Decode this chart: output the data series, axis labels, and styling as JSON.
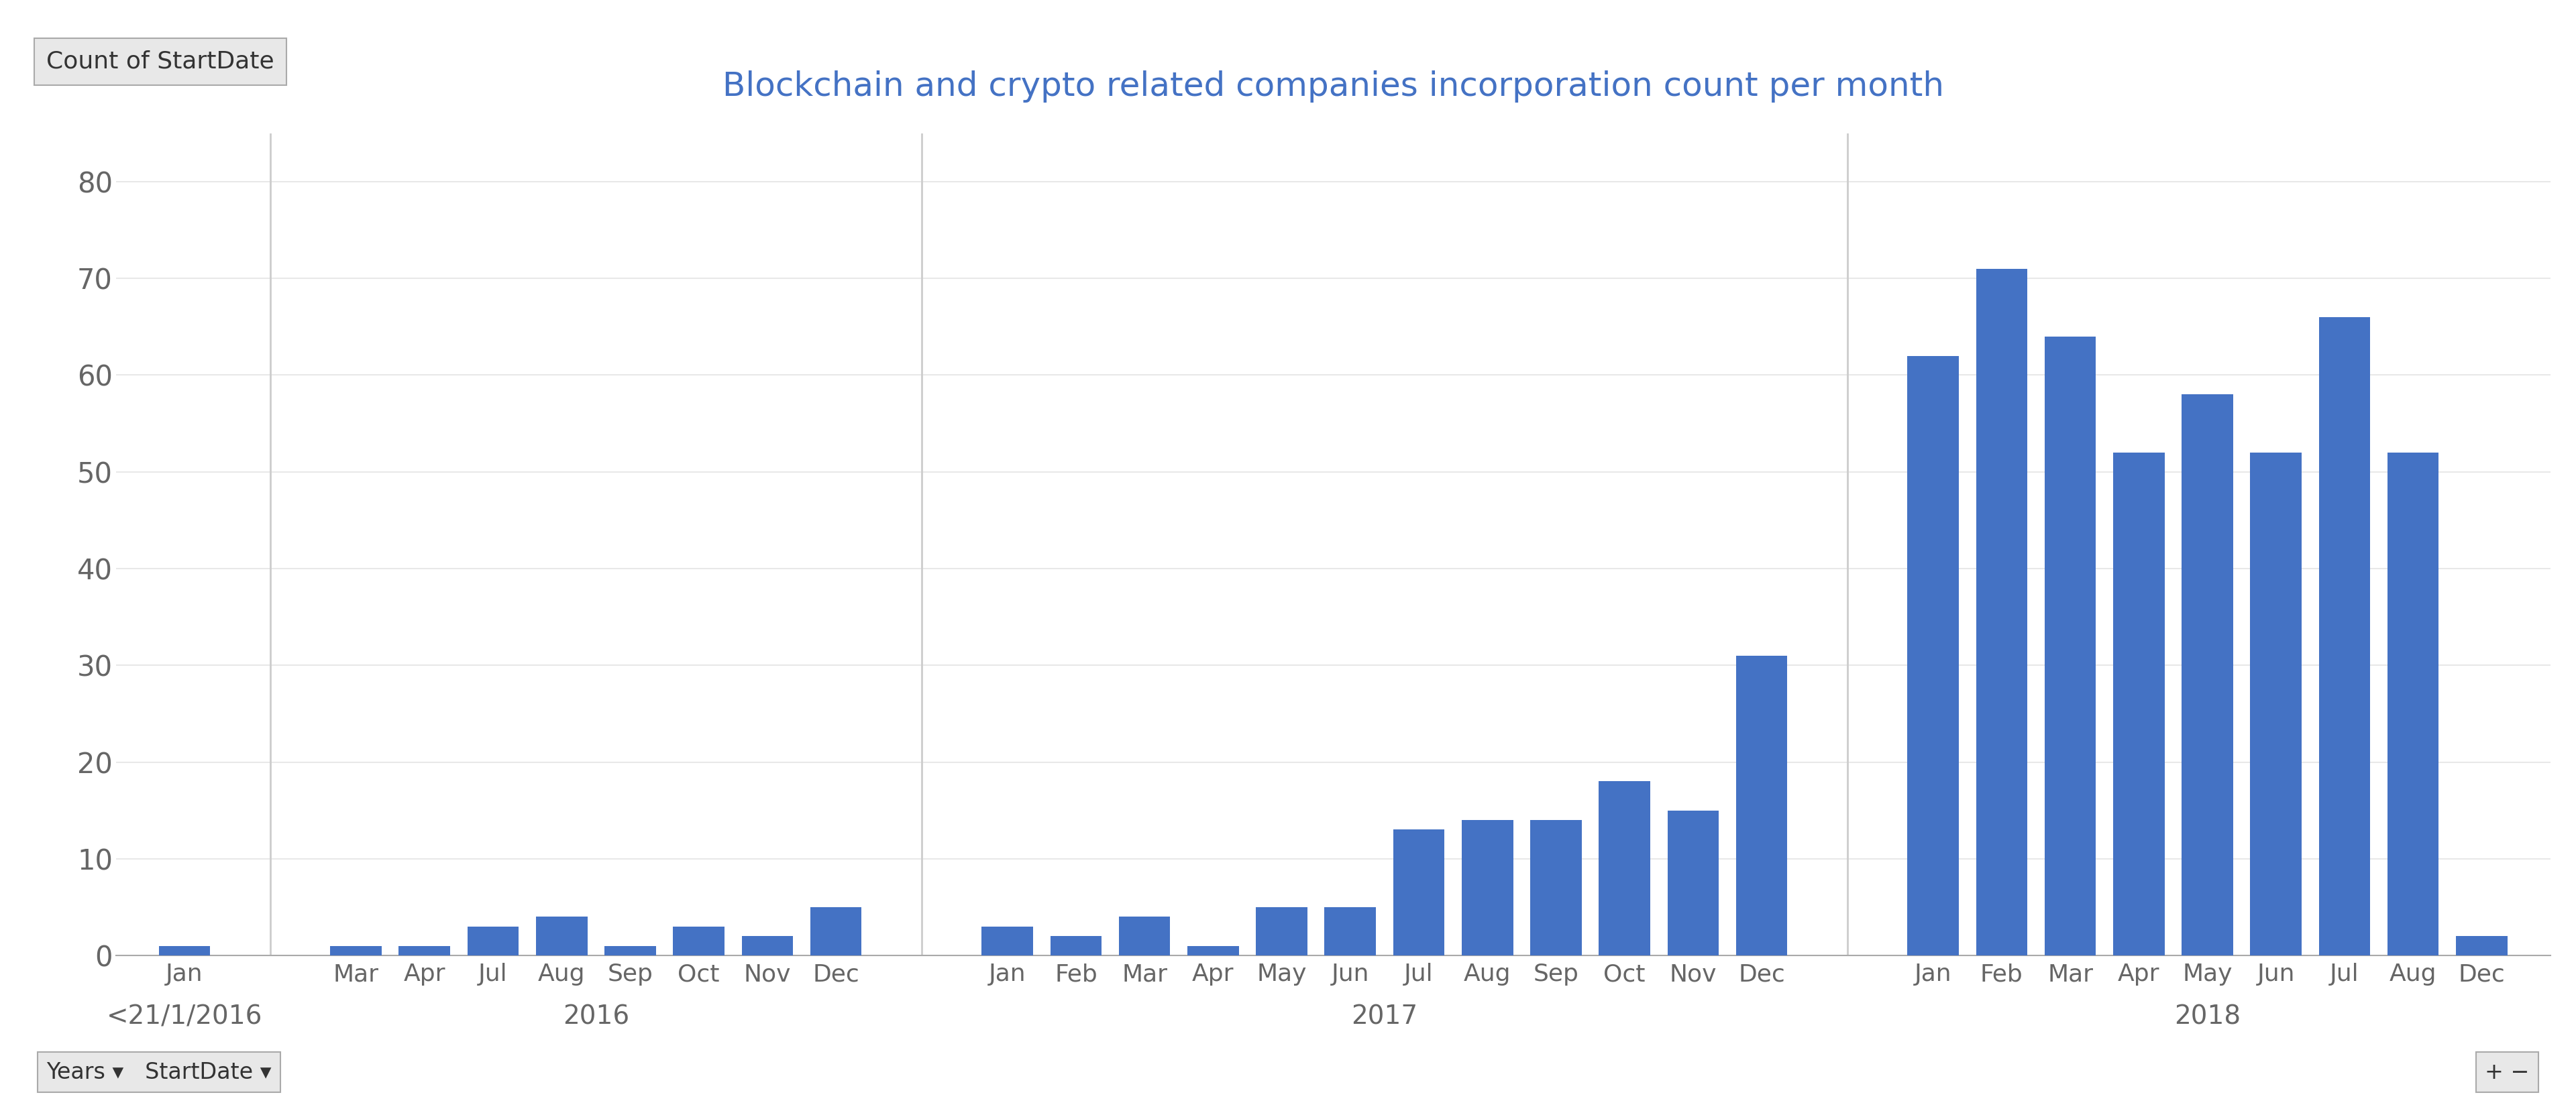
{
  "title": "Blockchain and crypto related companies incorporation count per month",
  "ylabel": "Count of StartDate",
  "bar_color": "#4472C4",
  "background_color": "#FFFFFF",
  "ylim": [
    0,
    85
  ],
  "yticks": [
    0,
    10,
    20,
    30,
    40,
    50,
    60,
    70,
    80
  ],
  "groups": [
    {
      "label": "<21/1/2016",
      "months": [
        "Jan"
      ],
      "values": [
        1
      ]
    },
    {
      "label": "2016",
      "months": [
        "Mar",
        "Apr",
        "Jul",
        "Aug",
        "Sep",
        "Oct",
        "Nov",
        "Dec"
      ],
      "values": [
        1,
        1,
        3,
        4,
        1,
        3,
        2,
        5
      ]
    },
    {
      "label": "2017",
      "months": [
        "Jan",
        "Feb",
        "Mar",
        "Apr",
        "May",
        "Jun",
        "Jul",
        "Aug",
        "Sep",
        "Oct",
        "Nov",
        "Dec"
      ],
      "values": [
        3,
        2,
        4,
        1,
        5,
        5,
        13,
        14,
        14,
        18,
        15,
        31
      ]
    },
    {
      "label": "2018",
      "months": [
        "Jan",
        "Feb",
        "Mar",
        "Apr",
        "May",
        "Jun",
        "Jul",
        "Aug",
        "Dec"
      ],
      "values": [
        62,
        71,
        64,
        52,
        58,
        52,
        66,
        52,
        2
      ]
    }
  ],
  "group_divider_color": "#CCCCCC",
  "axis_color": "#AAAAAA",
  "text_color": "#666666",
  "title_color": "#4472C4",
  "ylabel_box_color": "#E8E8E8",
  "ylabel_box_border": "#AAAAAA",
  "footer_left": "Years ▾   StartDate ▾",
  "footer_right": "+ −"
}
